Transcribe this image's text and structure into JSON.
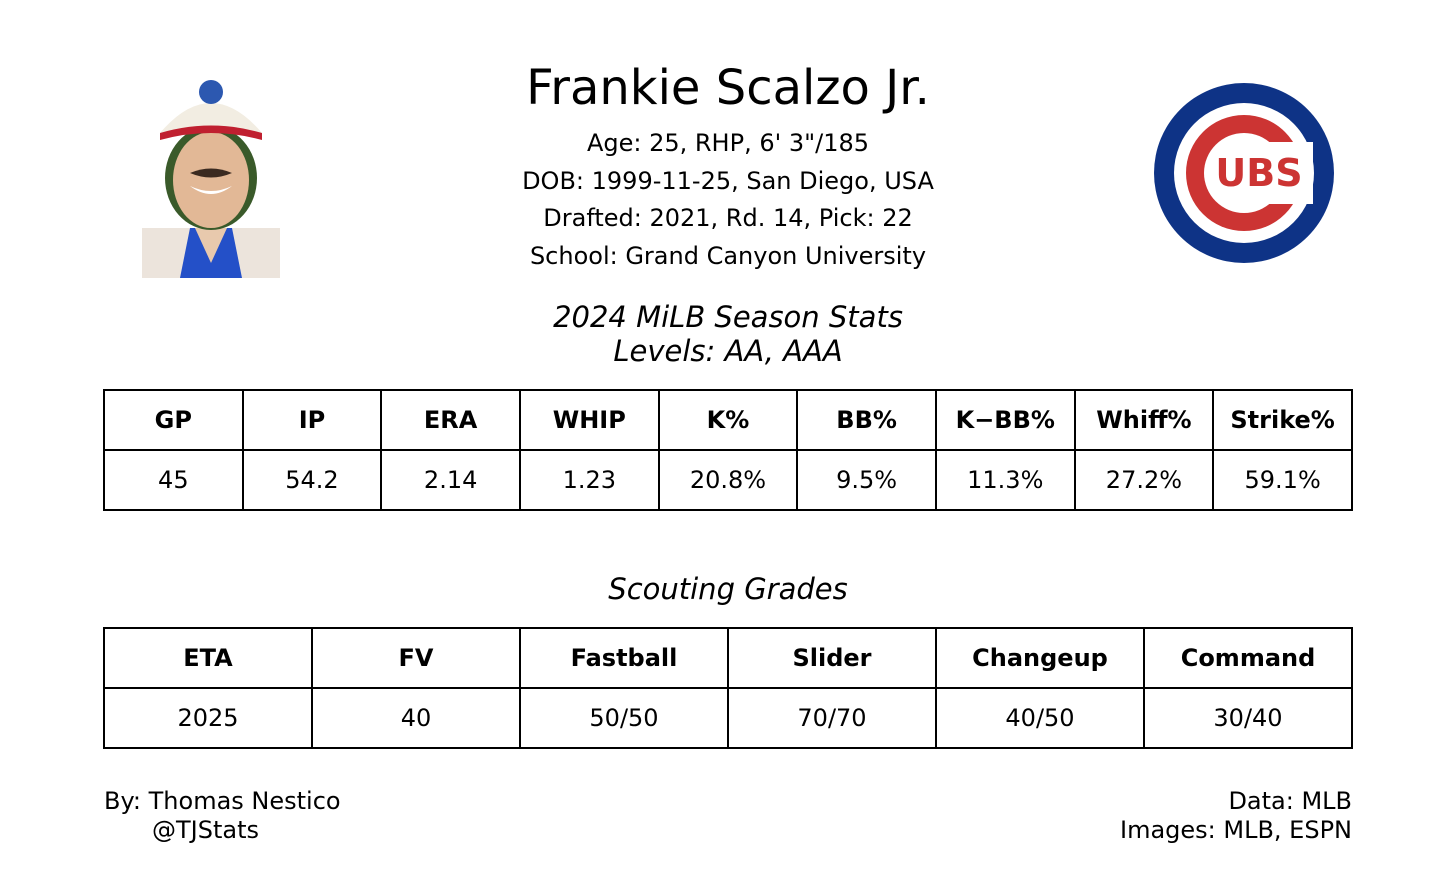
{
  "header": {
    "name": "Frankie Scalzo Jr.",
    "lines": [
      "Age: 25, RHP, 6' 3\"/185",
      "DOB: 1999-11-25, San Diego, USA",
      "Drafted: 2021, Rd. 14, Pick: 22",
      "School: Grand Canyon University"
    ]
  },
  "logo": {
    "text": "UBS"
  },
  "stats": {
    "title": "2024 MiLB Season Stats",
    "subtitle": "Levels: AA, AAA",
    "columns": [
      "GP",
      "IP",
      "ERA",
      "WHIP",
      "K%",
      "BB%",
      "K−BB%",
      "Whiff%",
      "Strike%"
    ],
    "values": [
      "45",
      "54.2",
      "2.14",
      "1.23",
      "20.8%",
      "9.5%",
      "11.3%",
      "27.2%",
      "59.1%"
    ]
  },
  "grades": {
    "title": "Scouting Grades",
    "columns": [
      "ETA",
      "FV",
      "Fastball",
      "Slider",
      "Changeup",
      "Command"
    ],
    "values": [
      "2025",
      "40",
      "50/50",
      "70/70",
      "40/50",
      "30/40"
    ]
  },
  "footer": {
    "left": [
      "By: Thomas Nestico",
      "@TJStats"
    ],
    "right": [
      "Data: MLB",
      "Images: MLB, ESPN"
    ]
  }
}
